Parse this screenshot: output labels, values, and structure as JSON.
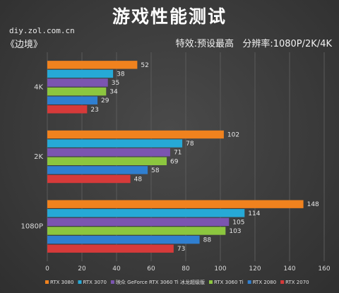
{
  "header": {
    "title": "游戏性能测试",
    "source": "diy.zol.com.cn",
    "game": "《边境》",
    "settings": "特效:预设最高   分辨率:1080P/2K/4K"
  },
  "colors": {
    "background": "#3b3b3b",
    "gridline": "#5a5a5a",
    "text": "#dcdcdc"
  },
  "chart_data": {
    "type": "bar",
    "orientation": "horizontal",
    "title": "游戏性能测试",
    "categories": [
      "4K",
      "2K",
      "1080P"
    ],
    "xlim": [
      0,
      160
    ],
    "xticks": [
      0,
      20,
      40,
      60,
      80,
      100,
      120,
      140,
      160
    ],
    "grid": true,
    "legend_position": "bottom",
    "series": [
      {
        "name": "RTX 3080",
        "color": "#f0821e",
        "values": [
          52,
          102,
          148
        ]
      },
      {
        "name": "RTX 3070",
        "color": "#26a9d6",
        "values": [
          38,
          78,
          114
        ]
      },
      {
        "name": "映众 GeForce RTX 3060 Ti 冰龙超级版",
        "color": "#7b55b0",
        "values": [
          35,
          71,
          105
        ]
      },
      {
        "name": "RTX 3060 Ti",
        "color": "#8cc63f",
        "values": [
          34,
          69,
          103
        ]
      },
      {
        "name": "RTX 2080",
        "color": "#2f7fd0",
        "values": [
          29,
          58,
          88
        ]
      },
      {
        "name": "RTX 2070",
        "color": "#d63a3a",
        "values": [
          23,
          48,
          73
        ]
      }
    ]
  }
}
